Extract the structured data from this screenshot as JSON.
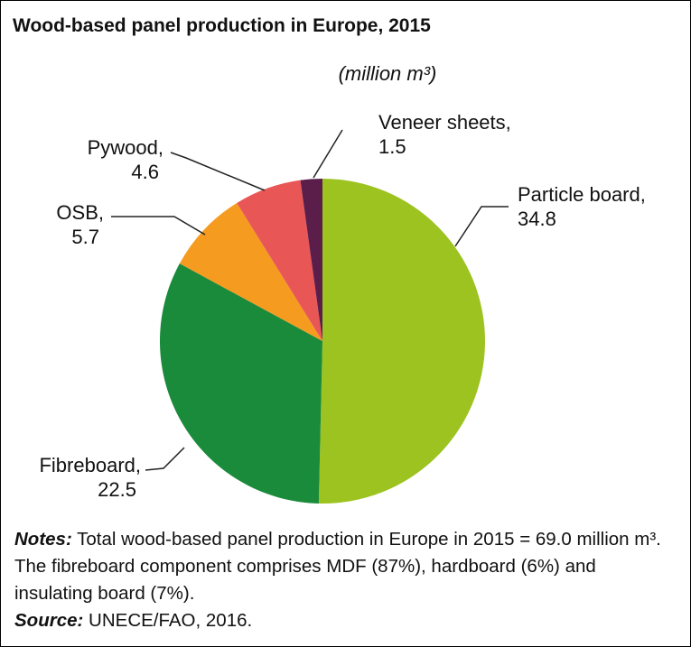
{
  "chart_data": {
    "type": "pie",
    "title": "Wood-based panel production in Europe, 2015",
    "subtitle": "(million m³)",
    "categories": [
      "Particle board,",
      "Fibreboard,",
      "OSB,",
      "Pywood,",
      "Veneer sheets,"
    ],
    "values": [
      34.8,
      22.5,
      5.7,
      4.6,
      1.5
    ],
    "colors": [
      "#9cc31f",
      "#1a8a3b",
      "#f49b20",
      "#e95656",
      "#5b1e4b"
    ]
  },
  "notes": {
    "label": "Notes:",
    "text": "Total wood-based panel production in Europe in 2015 = 69.0 million m³. The fibreboard component comprises MDF (87%), hardboard (6%) and insulating board (7%)."
  },
  "source": {
    "label": "Source:",
    "text": "UNECE/FAO, 2016."
  }
}
